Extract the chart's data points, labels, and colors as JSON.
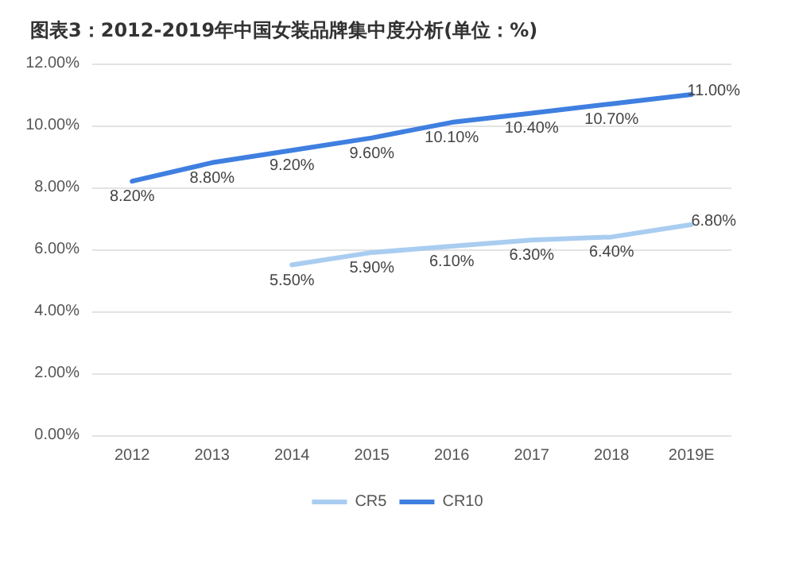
{
  "chart_data": {
    "type": "line",
    "title": "图表3：2012-2019年中国女装品牌集中度分析(单位：%)",
    "categories": [
      "2012",
      "2013",
      "2014",
      "2015",
      "2016",
      "2017",
      "2018",
      "2019E"
    ],
    "series": [
      {
        "name": "CR5",
        "color": "#a9cdf0",
        "values": [
          null,
          null,
          5.5,
          5.9,
          6.1,
          6.3,
          6.4,
          6.8
        ],
        "value_labels": [
          null,
          null,
          "5.50%",
          "5.90%",
          "6.10%",
          "6.30%",
          "6.40%",
          "6.80%"
        ]
      },
      {
        "name": "CR10",
        "color": "#3f7fe0",
        "values": [
          8.2,
          8.8,
          9.2,
          9.6,
          10.1,
          10.4,
          10.7,
          11.0
        ],
        "value_labels": [
          "8.20%",
          "8.80%",
          "9.20%",
          "9.60%",
          "10.10%",
          "10.40%",
          "10.70%",
          "11.00%"
        ]
      }
    ],
    "ylim": [
      0,
      12
    ],
    "yticks": [
      {
        "value": 0,
        "label": "0.00%"
      },
      {
        "value": 2,
        "label": "2.00%"
      },
      {
        "value": 4,
        "label": "4.00%"
      },
      {
        "value": 6,
        "label": "6.00%"
      },
      {
        "value": 8,
        "label": "8.00%"
      },
      {
        "value": 10,
        "label": "10.00%"
      },
      {
        "value": 12,
        "label": "12.00%"
      }
    ],
    "grid": "y",
    "legend": "bottom",
    "marker": "none",
    "line_style": "solid"
  }
}
